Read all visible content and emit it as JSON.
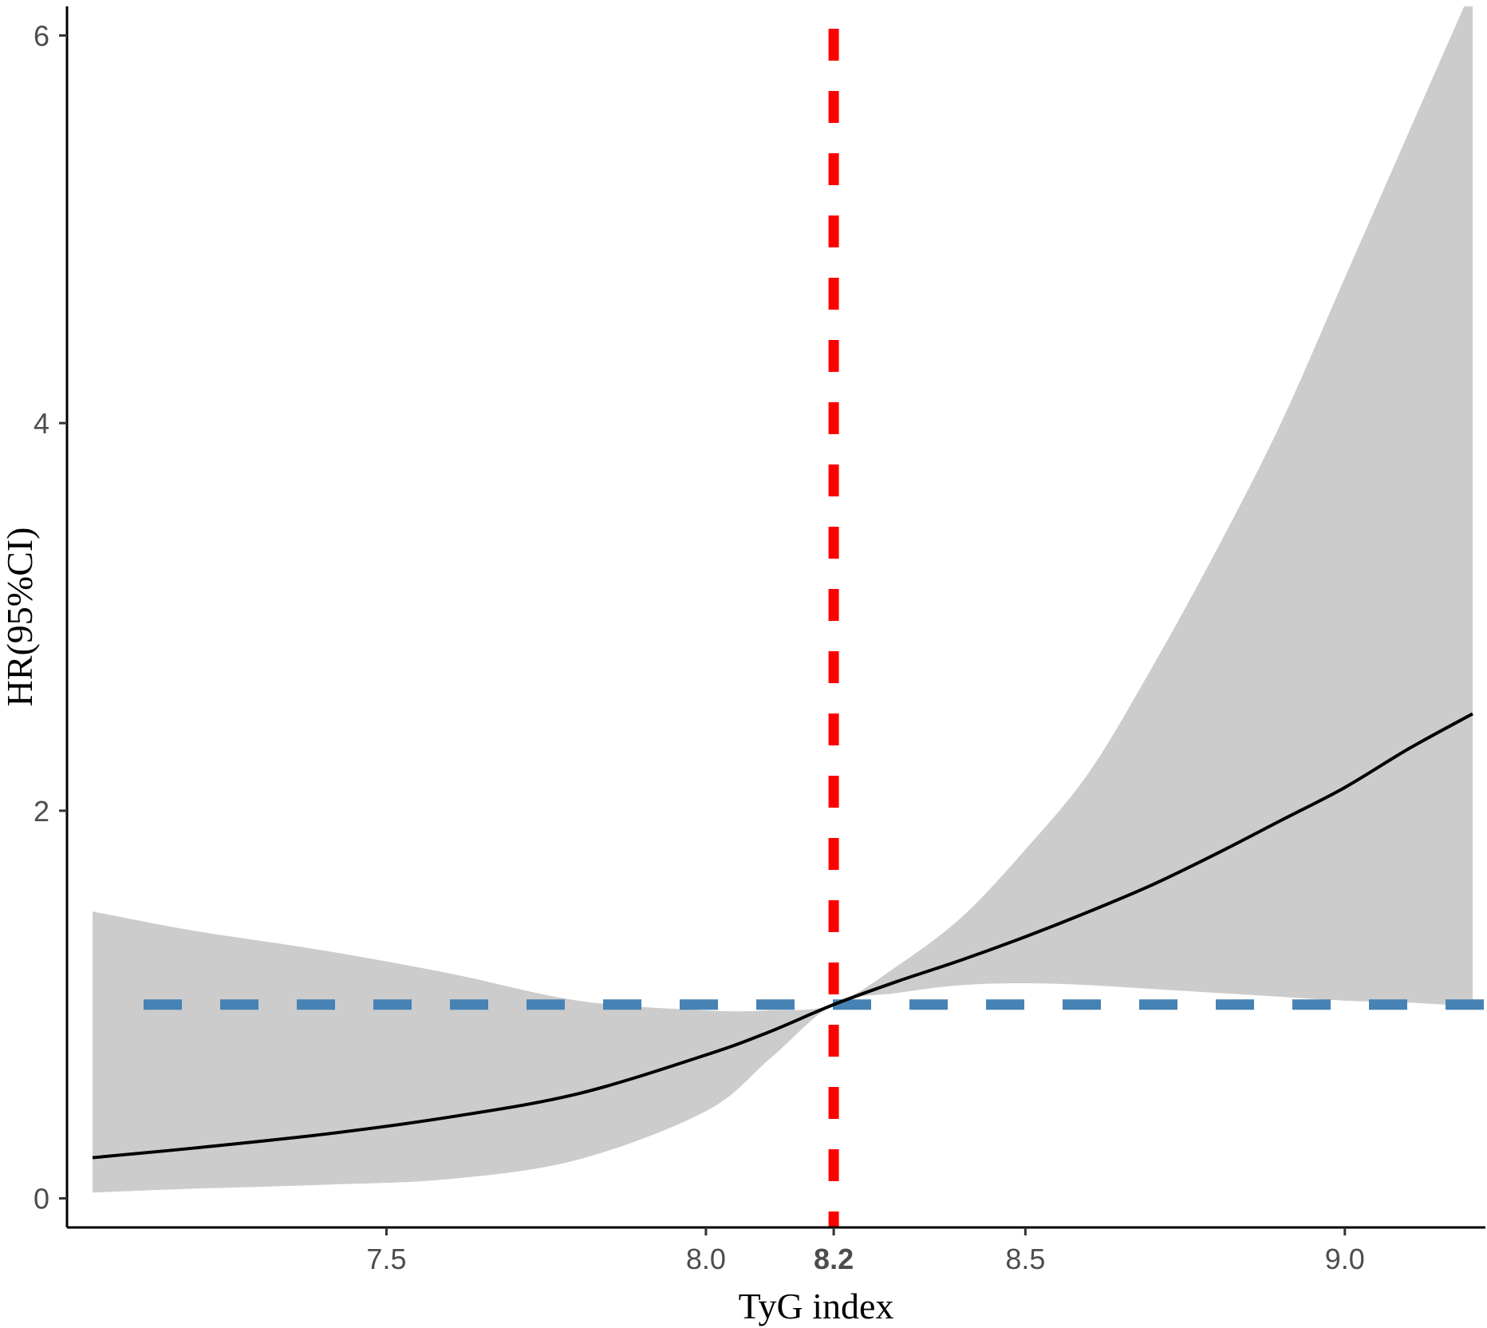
{
  "chart_data": {
    "type": "line",
    "title": "",
    "xlabel": "TyG index",
    "ylabel": "HR(95%CI)",
    "xlim": [
      7.0,
      9.22
    ],
    "ylim": [
      -0.15,
      6.15
    ],
    "x_ticks": [
      {
        "value": 7.5,
        "label": "7.5",
        "bold": false
      },
      {
        "value": 8.0,
        "label": "8.0",
        "bold": false
      },
      {
        "value": 8.2,
        "label": "8.2",
        "bold": true
      },
      {
        "value": 8.5,
        "label": "8.5",
        "bold": false
      },
      {
        "value": 9.0,
        "label": "9.0",
        "bold": false
      }
    ],
    "y_ticks": [
      {
        "value": 0,
        "label": "0"
      },
      {
        "value": 2,
        "label": "2"
      },
      {
        "value": 4,
        "label": "4"
      },
      {
        "value": 6,
        "label": "6"
      }
    ],
    "grid": false,
    "reference_lines": [
      {
        "orientation": "vertical",
        "value": 8.2,
        "color": "#ff0000",
        "style": "dashed"
      },
      {
        "orientation": "horizontal",
        "value": 1.0,
        "color": "#4682b4",
        "style": "dashed"
      }
    ],
    "series": [
      {
        "color": "#000000",
        "x": [
          7.04,
          7.2,
          7.4,
          7.6,
          7.8,
          8.0,
          8.1,
          8.2,
          8.3,
          8.4,
          8.5,
          8.6,
          8.7,
          8.8,
          8.9,
          9.0,
          9.1,
          9.2
        ],
        "y": [
          0.21,
          0.26,
          0.33,
          0.42,
          0.54,
          0.74,
          0.86,
          1.0,
          1.12,
          1.23,
          1.35,
          1.48,
          1.62,
          1.78,
          1.95,
          2.12,
          2.32,
          2.5
        ],
        "ci_color": "#cccccc",
        "ci_lower": [
          0.03,
          0.05,
          0.07,
          0.1,
          0.2,
          0.45,
          0.72,
          1.0,
          1.06,
          1.1,
          1.11,
          1.1,
          1.08,
          1.06,
          1.04,
          1.02,
          1.01,
          0.99
        ],
        "ci_upper": [
          1.48,
          1.38,
          1.28,
          1.16,
          1.02,
          0.97,
          0.97,
          1.0,
          1.2,
          1.45,
          1.8,
          2.2,
          2.75,
          3.35,
          4.0,
          4.75,
          5.5,
          6.25
        ]
      }
    ]
  }
}
